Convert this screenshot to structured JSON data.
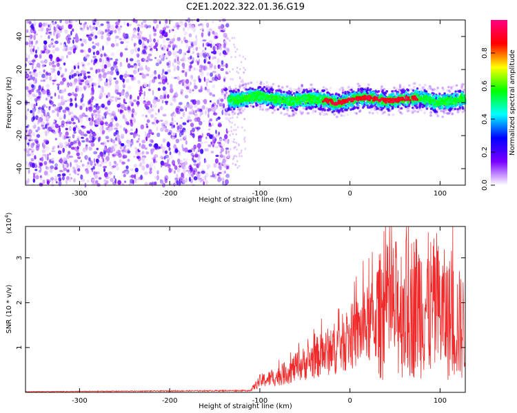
{
  "figure": {
    "title": "C2E1.2022.322.01.36.G19"
  },
  "chart_data": [
    {
      "type": "heatmap",
      "xlabel": "Height of straight line (km)",
      "ylabel": "Frequency (Hz)",
      "xlim": [
        -360,
        128
      ],
      "ylim": [
        -50,
        50
      ],
      "xticks": [
        -300,
        -200,
        -100,
        0,
        100
      ],
      "yticks": [
        -40,
        -20,
        0,
        20,
        40
      ],
      "colorbar": {
        "label": "Normalized spectral amplitude",
        "range": [
          0.0,
          1.0
        ],
        "ticks": [
          0.0,
          0.2,
          0.4,
          0.6,
          0.8
        ],
        "colors": [
          "#ffffff",
          "#7a00ff",
          "#0000ff",
          "#00ffff",
          "#00ff00",
          "#ffff00",
          "#ff0000",
          "#ff0080"
        ]
      },
      "regions": [
        {
          "x_range": [
            -360,
            -135
          ],
          "freq_range": [
            -50,
            50
          ],
          "amplitude": "scattered 0.0-0.25"
        },
        {
          "x_range": [
            -135,
            128
          ],
          "freq_center_hz": 2,
          "freq_halfwidth_hz": 5,
          "peak_amplitude": 0.9
        }
      ],
      "grid": false
    },
    {
      "type": "line",
      "xlabel": "Height of straight line (km)",
      "ylabel": "SNR (10 * v/v)",
      "y_multiplier": "(x10^4)",
      "xlim": [
        -360,
        128
      ],
      "ylim": [
        0,
        3.7
      ],
      "xticks": [
        -300,
        -200,
        -100,
        0,
        100
      ],
      "yticks": [
        1,
        2,
        3
      ],
      "line_color": "#f02a2a",
      "envelope": {
        "x": [
          -360,
          -110,
          -100,
          -80,
          -60,
          -40,
          -20,
          0,
          20,
          40,
          60,
          80,
          100,
          128
        ],
        "y": [
          0.02,
          0.05,
          0.25,
          0.35,
          0.55,
          0.75,
          0.95,
          1.2,
          1.5,
          1.8,
          1.9,
          2.0,
          1.8,
          1.4
        ]
      },
      "grid": false
    }
  ]
}
